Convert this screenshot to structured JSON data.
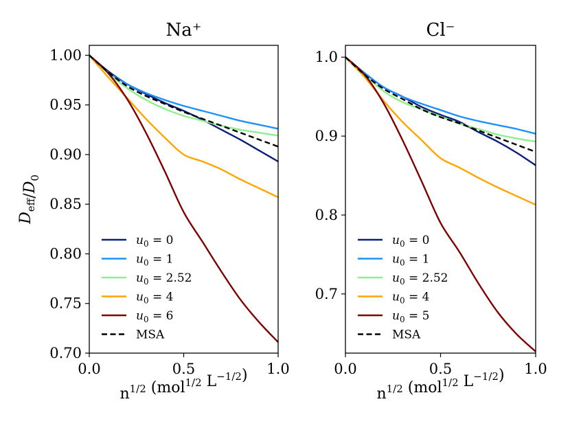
{
  "chart_data": [
    {
      "type": "line",
      "title": "Na⁺",
      "xlabel": "n^1/2 (mol^1/2 L^−1/2)",
      "ylabel": "D_eff / D_0",
      "xlim": [
        0,
        1
      ],
      "ylim": [
        0.7,
        1.01
      ],
      "xticks": [
        0.0,
        0.5,
        1.0
      ],
      "xtick_labels": [
        "0.0",
        "0.5",
        "1.0"
      ],
      "yticks": [
        0.7,
        0.75,
        0.8,
        0.85,
        0.9,
        0.95,
        1.0
      ],
      "ytick_labels": [
        "0.70",
        "0.75",
        "0.80",
        "0.85",
        "0.90",
        "0.95",
        "1.00"
      ],
      "legend_position": "lower-left",
      "x": [
        0,
        0.1,
        0.2,
        0.3,
        0.4,
        0.5,
        0.6,
        0.7,
        0.8,
        0.9,
        1.0
      ],
      "series": [
        {
          "name": "u₀ = 0",
          "color": "#0b1f7a",
          "dashed": false,
          "values": [
            1.0,
            0.984,
            0.971,
            0.961,
            0.952,
            0.944,
            0.935,
            0.925,
            0.915,
            0.904,
            0.893
          ]
        },
        {
          "name": "u₀ = 1",
          "color": "#1e90ff",
          "dashed": false,
          "values": [
            1.0,
            0.983,
            0.971,
            0.962,
            0.955,
            0.949,
            0.944,
            0.939,
            0.934,
            0.93,
            0.926
          ]
        },
        {
          "name": "u₀ = 2.52",
          "color": "#90ee90",
          "dashed": false,
          "values": [
            1.0,
            0.982,
            0.967,
            0.955,
            0.946,
            0.939,
            0.934,
            0.929,
            0.925,
            0.922,
            0.919
          ]
        },
        {
          "name": "u₀ = 4",
          "color": "#ffa500",
          "dashed": false,
          "values": [
            1.0,
            0.978,
            0.957,
            0.936,
            0.917,
            0.9,
            0.893,
            0.885,
            0.875,
            0.866,
            0.857
          ]
        },
        {
          "name": "u₀ = 6",
          "color": "#7f0000",
          "dashed": false,
          "values": [
            1.0,
            0.982,
            0.956,
            0.922,
            0.883,
            0.842,
            0.812,
            0.782,
            0.754,
            0.731,
            0.711
          ]
        },
        {
          "name": "MSA",
          "color": "#000000",
          "dashed": true,
          "values": [
            1.0,
            0.983,
            0.969,
            0.959,
            0.951,
            0.943,
            0.936,
            0.929,
            0.922,
            0.915,
            0.908
          ]
        }
      ]
    },
    {
      "type": "line",
      "title": "Cl⁻",
      "xlabel": "n^1/2 (mol^1/2 L^−1/2)",
      "ylabel": "",
      "xlim": [
        0,
        1
      ],
      "ylim": [
        0.625,
        1.015
      ],
      "xticks": [
        0.0,
        0.5,
        1.0
      ],
      "xtick_labels": [
        "0.0",
        "0.5",
        "1.0"
      ],
      "yticks": [
        0.7,
        0.8,
        0.9,
        1.0
      ],
      "ytick_labels": [
        "0.7",
        "0.8",
        "0.9",
        "1.0"
      ],
      "legend_position": "lower-left",
      "x": [
        0,
        0.1,
        0.2,
        0.3,
        0.4,
        0.5,
        0.6,
        0.7,
        0.8,
        0.9,
        1.0
      ],
      "series": [
        {
          "name": "u₀ = 0",
          "color": "#0b1f7a",
          "dashed": false,
          "values": [
            1.0,
            0.98,
            0.962,
            0.95,
            0.937,
            0.927,
            0.918,
            0.905,
            0.893,
            0.879,
            0.863
          ]
        },
        {
          "name": "u₀ = 1",
          "color": "#1e90ff",
          "dashed": false,
          "values": [
            1.0,
            0.98,
            0.962,
            0.95,
            0.941,
            0.933,
            0.925,
            0.919,
            0.914,
            0.909,
            0.903
          ]
        },
        {
          "name": "u₀ = 2.52",
          "color": "#90ee90",
          "dashed": false,
          "values": [
            1.0,
            0.978,
            0.957,
            0.943,
            0.934,
            0.925,
            0.916,
            0.909,
            0.902,
            0.897,
            0.893
          ]
        },
        {
          "name": "u₀ = 4",
          "color": "#ffa500",
          "dashed": false,
          "values": [
            1.0,
            0.975,
            0.945,
            0.918,
            0.895,
            0.872,
            0.86,
            0.847,
            0.835,
            0.824,
            0.813
          ]
        },
        {
          "name": "u₀ = 5",
          "color": "#7f0000",
          "dashed": false,
          "values": [
            1.0,
            0.978,
            0.942,
            0.895,
            0.843,
            0.79,
            0.753,
            0.713,
            0.677,
            0.649,
            0.627
          ]
        },
        {
          "name": "MSA",
          "color": "#000000",
          "dashed": true,
          "values": [
            1.0,
            0.978,
            0.96,
            0.947,
            0.934,
            0.924,
            0.916,
            0.907,
            0.898,
            0.889,
            0.88
          ]
        }
      ]
    }
  ]
}
